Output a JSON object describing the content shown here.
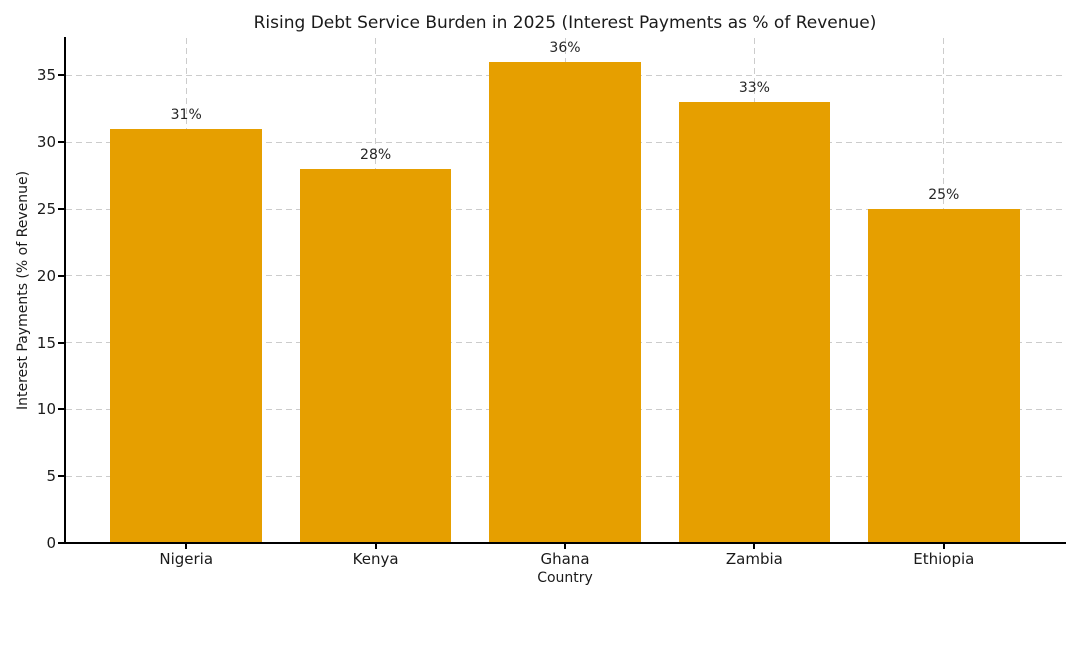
{
  "figure": {
    "title": "Rising Debt Service Burden in 2025 (Interest Payments as % of Revenue)"
  },
  "chart_data": {
    "type": "bar",
    "title": "Rising Debt Service Burden in 2025 (Interest Payments as % of Revenue)",
    "categories": [
      "Nigeria",
      "Kenya",
      "Ghana",
      "Zambia",
      "Ethiopia"
    ],
    "values": [
      31,
      28,
      36,
      33,
      25
    ],
    "bar_labels": [
      "31%",
      "28%",
      "36%",
      "33%",
      "25%"
    ],
    "xlabel": "Country",
    "ylabel": "Interest Payments (% of Revenue)",
    "ylim": [
      0,
      37.8
    ],
    "yticks": [
      0,
      5,
      10,
      15,
      20,
      25,
      30,
      35
    ],
    "bar_color": "#E69F00",
    "grid": {
      "on": true,
      "axes": "both",
      "style": "dashed",
      "color": "#cccccc"
    },
    "legend": null,
    "background_color": "#ffffff"
  }
}
